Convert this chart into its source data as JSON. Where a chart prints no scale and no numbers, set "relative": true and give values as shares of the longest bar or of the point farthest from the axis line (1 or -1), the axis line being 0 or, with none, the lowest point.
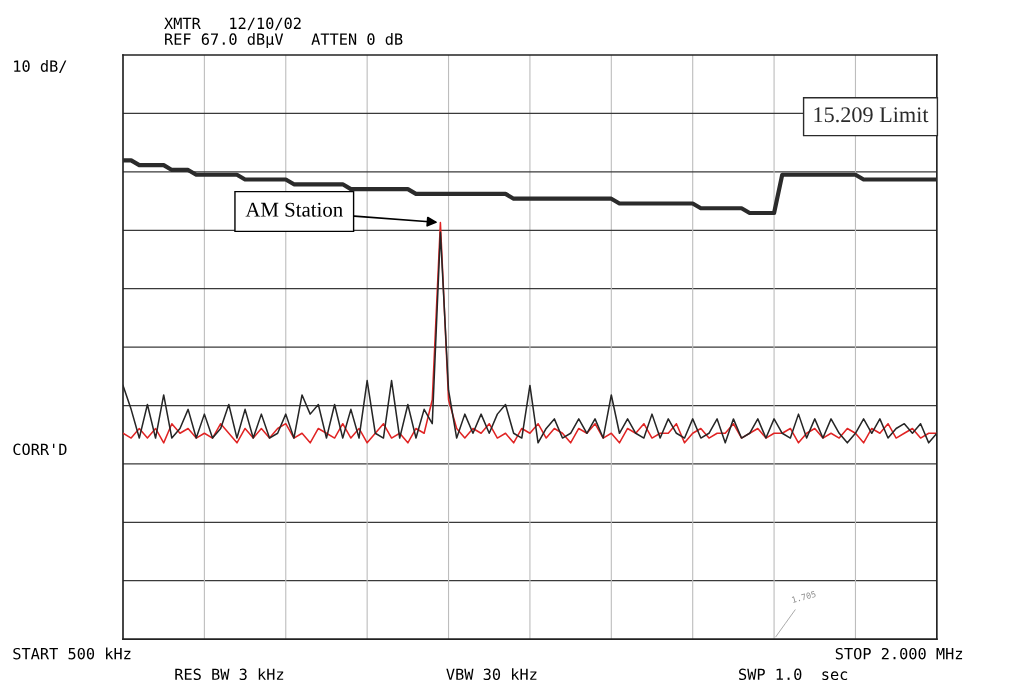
{
  "chart_data": {
    "type": "line",
    "title": "XMTR   12/10/02",
    "subtitle": "REF 67.0 dBµV   ATTEN 0 dB",
    "annotations": [
      "10 dB/",
      "CORR'D",
      "START 500 kHz",
      "STOP 2.000 MHz",
      "RES BW 3 kHz",
      "VBW 30 kHz",
      "SWP 1.0  sec",
      "AM Station",
      "1.705"
    ],
    "relative": true,
    "categories": [
      null,
      null,
      null,
      null,
      null,
      null,
      null,
      null,
      null,
      null,
      null,
      null,
      null,
      null,
      null,
      null,
      null,
      null,
      null,
      null,
      null,
      null,
      null,
      null,
      null,
      null,
      null,
      null,
      null,
      null,
      null,
      null,
      null,
      null,
      null,
      null,
      null,
      null,
      null,
      null,
      null,
      null,
      null,
      null,
      null,
      null,
      null,
      null,
      null,
      null,
      null,
      null,
      null,
      null,
      null,
      null,
      null,
      null,
      null,
      null,
      null,
      null,
      null,
      null,
      null,
      null,
      null,
      null,
      null,
      null,
      null,
      null,
      null,
      null,
      null,
      null,
      null,
      null,
      null,
      null,
      null,
      null,
      null,
      null,
      null,
      null,
      null,
      null,
      null,
      null,
      null,
      null,
      null,
      null,
      null,
      null,
      null,
      null,
      null,
      null,
      null
    ],
    "series": [
      {
        "name": "15.209 Limit",
        "color": "#2b2b2b",
        "values": [
          1.0,
          1.0,
          0.99,
          0.99,
          0.99,
          0.99,
          0.98,
          0.98,
          0.98,
          0.97,
          0.97,
          0.97,
          0.97,
          0.97,
          0.97,
          0.96,
          0.96,
          0.96,
          0.96,
          0.96,
          0.96,
          0.95,
          0.95,
          0.95,
          0.95,
          0.95,
          0.95,
          0.95,
          0.94,
          0.94,
          0.94,
          0.94,
          0.94,
          0.94,
          0.94,
          0.94,
          0.93,
          0.93,
          0.93,
          0.93,
          0.93,
          0.93,
          0.93,
          0.93,
          0.93,
          0.93,
          0.93,
          0.93,
          0.92,
          0.92,
          0.92,
          0.92,
          0.92,
          0.92,
          0.92,
          0.92,
          0.92,
          0.92,
          0.92,
          0.92,
          0.92,
          0.91,
          0.91,
          0.91,
          0.91,
          0.91,
          0.91,
          0.91,
          0.91,
          0.91,
          0.91,
          0.9,
          0.9,
          0.9,
          0.9,
          0.9,
          0.9,
          0.89,
          0.89,
          0.89,
          0.89,
          0.97,
          0.97,
          0.97,
          0.97,
          0.97,
          0.97,
          0.97,
          0.97,
          0.97,
          0.97,
          0.96,
          0.96,
          0.96,
          0.96,
          0.96,
          0.96,
          0.96,
          0.96,
          0.96,
          0.96
        ]
      },
      {
        "color": "#e02424",
        "values": [
          0.43,
          0.42,
          0.44,
          0.42,
          0.44,
          0.41,
          0.45,
          0.43,
          0.44,
          0.42,
          0.43,
          0.42,
          0.45,
          0.43,
          0.41,
          0.44,
          0.42,
          0.44,
          0.42,
          0.44,
          0.45,
          0.42,
          0.43,
          0.41,
          0.44,
          0.43,
          0.42,
          0.45,
          0.42,
          0.44,
          0.41,
          0.43,
          0.45,
          0.42,
          0.43,
          0.41,
          0.44,
          0.43,
          0.5,
          0.87,
          0.5,
          0.44,
          0.42,
          0.44,
          0.43,
          0.45,
          0.42,
          0.43,
          0.41,
          0.44,
          0.43,
          0.45,
          0.42,
          0.44,
          0.43,
          0.41,
          0.44,
          0.43,
          0.45,
          0.42,
          0.43,
          0.41,
          0.44,
          0.43,
          0.45,
          0.42,
          0.43,
          0.43,
          0.45,
          0.41,
          0.43,
          0.44,
          0.42,
          0.43,
          0.43,
          0.45,
          0.42,
          0.43,
          0.44,
          0.42,
          0.43,
          0.43,
          0.44,
          0.41,
          0.43,
          0.44,
          0.42,
          0.43,
          0.42,
          0.44,
          0.43,
          0.41,
          0.44,
          0.43,
          0.45,
          0.42,
          0.43,
          0.44,
          0.42,
          0.43,
          0.43
        ]
      },
      {
        "color": "#262626",
        "values": [
          0.53,
          0.48,
          0.42,
          0.49,
          0.42,
          0.51,
          0.42,
          0.44,
          0.48,
          0.42,
          0.47,
          0.42,
          0.44,
          0.49,
          0.42,
          0.48,
          0.42,
          0.47,
          0.42,
          0.43,
          0.47,
          0.42,
          0.51,
          0.47,
          0.49,
          0.42,
          0.49,
          0.42,
          0.48,
          0.42,
          0.54,
          0.43,
          0.42,
          0.54,
          0.42,
          0.49,
          0.42,
          0.48,
          0.45,
          0.85,
          0.52,
          0.42,
          0.47,
          0.43,
          0.47,
          0.43,
          0.47,
          0.49,
          0.43,
          0.42,
          0.53,
          0.41,
          0.44,
          0.46,
          0.42,
          0.43,
          0.46,
          0.43,
          0.46,
          0.42,
          0.51,
          0.43,
          0.46,
          0.43,
          0.42,
          0.47,
          0.42,
          0.46,
          0.43,
          0.42,
          0.46,
          0.42,
          0.43,
          0.46,
          0.41,
          0.46,
          0.42,
          0.43,
          0.46,
          0.42,
          0.46,
          0.43,
          0.42,
          0.47,
          0.42,
          0.46,
          0.42,
          0.46,
          0.43,
          0.41,
          0.43,
          0.46,
          0.43,
          0.46,
          0.42,
          0.44,
          0.45,
          0.43,
          0.45,
          0.41,
          0.43
        ]
      }
    ],
    "grid": true,
    "marker": "none",
    "line_style": "solid"
  }
}
